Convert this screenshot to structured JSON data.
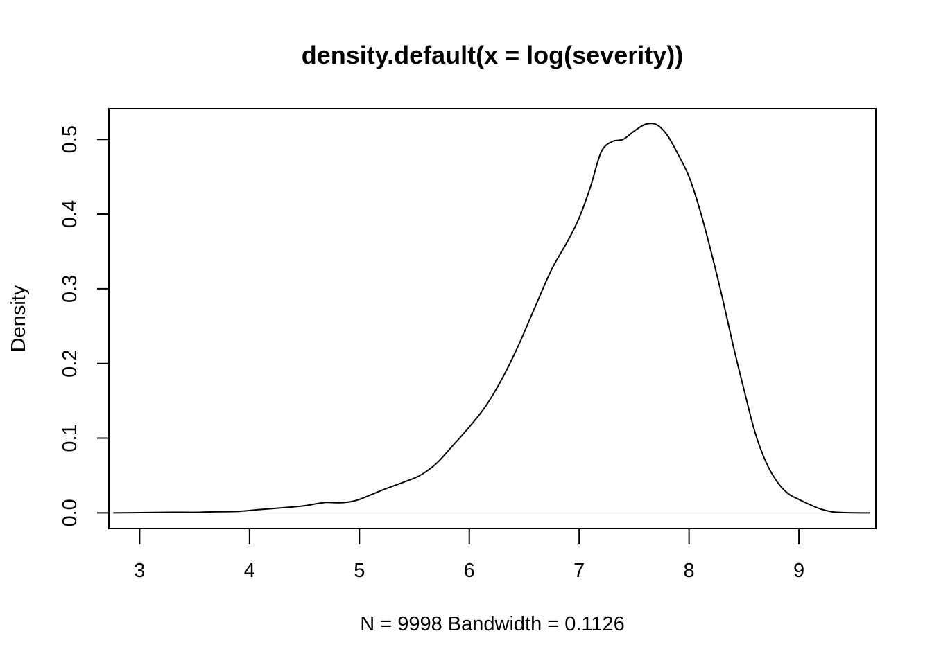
{
  "chart_data": {
    "type": "line",
    "title": "density.default(x = log(severity))",
    "xlabel": "N = 9998   Bandwidth = 0.1126",
    "ylabel": "Density",
    "xlim": [
      2.72,
      9.7
    ],
    "ylim": [
      -0.021,
      0.541
    ],
    "x_ticks": [
      3,
      4,
      5,
      6,
      7,
      8,
      9
    ],
    "y_ticks": [
      0.0,
      0.1,
      0.2,
      0.3,
      0.4,
      0.5
    ],
    "x_tick_labels": [
      "3",
      "4",
      "5",
      "6",
      "7",
      "8",
      "9"
    ],
    "y_tick_labels": [
      "0.0",
      "0.1",
      "0.2",
      "0.3",
      "0.4",
      "0.5"
    ],
    "grid": false,
    "series": [
      {
        "x": [
          2.76,
          3.0,
          3.3,
          3.5,
          3.7,
          3.9,
          4.1,
          4.3,
          4.5,
          4.6,
          4.7,
          4.8,
          4.9,
          5.0,
          5.2,
          5.4,
          5.55,
          5.7,
          5.85,
          6.0,
          6.15,
          6.3,
          6.45,
          6.6,
          6.75,
          6.9,
          7.0,
          7.1,
          7.2,
          7.3,
          7.4,
          7.5,
          7.6,
          7.7,
          7.8,
          7.9,
          8.0,
          8.1,
          8.2,
          8.3,
          8.4,
          8.5,
          8.6,
          8.7,
          8.8,
          8.9,
          9.0,
          9.1,
          9.2,
          9.3,
          9.4,
          9.5,
          9.65
        ],
        "y": [
          0.0,
          0.0003,
          0.0008,
          0.0007,
          0.0015,
          0.002,
          0.0045,
          0.0068,
          0.0095,
          0.012,
          0.014,
          0.0135,
          0.0145,
          0.018,
          0.03,
          0.041,
          0.05,
          0.066,
          0.09,
          0.115,
          0.143,
          0.18,
          0.225,
          0.276,
          0.326,
          0.365,
          0.395,
          0.435,
          0.483,
          0.497,
          0.5,
          0.511,
          0.52,
          0.52,
          0.506,
          0.48,
          0.45,
          0.405,
          0.35,
          0.29,
          0.225,
          0.165,
          0.108,
          0.068,
          0.042,
          0.026,
          0.018,
          0.011,
          0.005,
          0.0015,
          0.0004,
          0.0001,
          0.0
        ]
      }
    ]
  }
}
